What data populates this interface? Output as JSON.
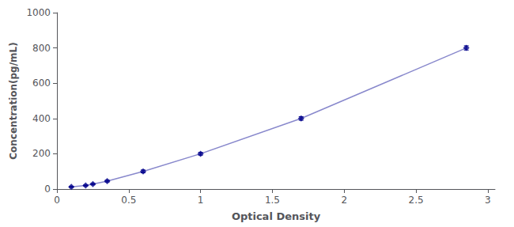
{
  "chart_data": {
    "type": "line",
    "xlabel": "Optical Density",
    "ylabel": "Concentration(pg/mL)",
    "x": [
      0.1,
      0.2,
      0.25,
      0.35,
      0.6,
      1.0,
      1.7,
      2.85
    ],
    "series": [
      {
        "type": "line",
        "color": "#8888cc",
        "values": [
          12,
          20,
          28,
          45,
          100,
          200,
          400,
          800
        ]
      },
      {
        "type": "scatter",
        "color": "#00008B",
        "marker": "diamond",
        "values": [
          12,
          20,
          28,
          45,
          100,
          200,
          400,
          800
        ],
        "y_err": [
          3,
          3,
          4,
          5,
          8,
          8,
          10,
          12
        ]
      }
    ],
    "xlim": [
      0.0,
      3.05
    ],
    "xticks": [
      0,
      0.5,
      1.0,
      1.5,
      2.0,
      2.5,
      3.0
    ],
    "ylim": [
      0,
      1000
    ],
    "yticks": [
      0,
      200,
      400,
      600,
      800,
      1000
    ],
    "grid": false
  }
}
